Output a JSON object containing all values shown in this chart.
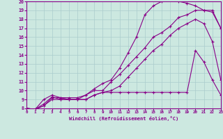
{
  "xlabel": "Windchill (Refroidissement éolien,°C)",
  "bg_color": "#cce8e0",
  "line_color": "#880088",
  "grid_color": "#aacccc",
  "xlim": [
    0,
    23
  ],
  "ylim": [
    8,
    20
  ],
  "yticks": [
    8,
    9,
    10,
    11,
    12,
    13,
    14,
    15,
    16,
    17,
    18,
    19,
    20
  ],
  "xticks": [
    0,
    1,
    2,
    3,
    4,
    5,
    6,
    7,
    8,
    9,
    10,
    11,
    12,
    13,
    14,
    15,
    16,
    17,
    18,
    19,
    20,
    21,
    22,
    23
  ],
  "line1_x": [
    0,
    1,
    2,
    3,
    4,
    5,
    6,
    7,
    8,
    9,
    10,
    11,
    12,
    13,
    14,
    15,
    16,
    17,
    18,
    19,
    20,
    21,
    22,
    23
  ],
  "line1_y": [
    8.0,
    7.9,
    9.0,
    9.5,
    9.2,
    9.0,
    9.0,
    9.5,
    10.0,
    10.0,
    11.0,
    11.8,
    12.8,
    13.8,
    14.8,
    16.0,
    16.5,
    17.2,
    18.2,
    18.5,
    19.0,
    19.0,
    18.8,
    17.0
  ],
  "line2_x": [
    0,
    1,
    2,
    3,
    4,
    5,
    6,
    7,
    8,
    9,
    10,
    11,
    12,
    13,
    14,
    15,
    16,
    17,
    18,
    19,
    20,
    21,
    22,
    23
  ],
  "line2_y": [
    8.0,
    7.9,
    8.5,
    9.3,
    9.0,
    9.0,
    9.0,
    9.0,
    9.5,
    9.8,
    10.0,
    10.5,
    11.5,
    12.5,
    13.5,
    14.5,
    15.2,
    16.2,
    17.0,
    17.5,
    18.0,
    17.5,
    15.5,
    11.2
  ],
  "line3_x": [
    0,
    1,
    2,
    3,
    4,
    5,
    6,
    7,
    8,
    9,
    10,
    11,
    12,
    13,
    14,
    15,
    16,
    17,
    18,
    19,
    20,
    21,
    22,
    23
  ],
  "line3_y": [
    8.0,
    7.9,
    8.3,
    9.2,
    9.2,
    9.2,
    9.2,
    9.5,
    10.2,
    10.8,
    11.2,
    12.5,
    14.2,
    16.0,
    18.5,
    19.5,
    20.0,
    20.2,
    20.0,
    19.8,
    19.5,
    19.0,
    19.0,
    17.0
  ],
  "line4_x": [
    0,
    1,
    2,
    3,
    4,
    5,
    6,
    7,
    8,
    9,
    10,
    11,
    12,
    13,
    14,
    15,
    16,
    17,
    18,
    19,
    20,
    21,
    22,
    23
  ],
  "line4_y": [
    8.0,
    7.9,
    8.3,
    9.0,
    9.0,
    9.0,
    9.0,
    9.0,
    9.5,
    9.8,
    9.8,
    9.8,
    9.8,
    9.8,
    9.8,
    9.8,
    9.8,
    9.8,
    9.8,
    9.8,
    14.5,
    13.2,
    11.2,
    9.5
  ]
}
